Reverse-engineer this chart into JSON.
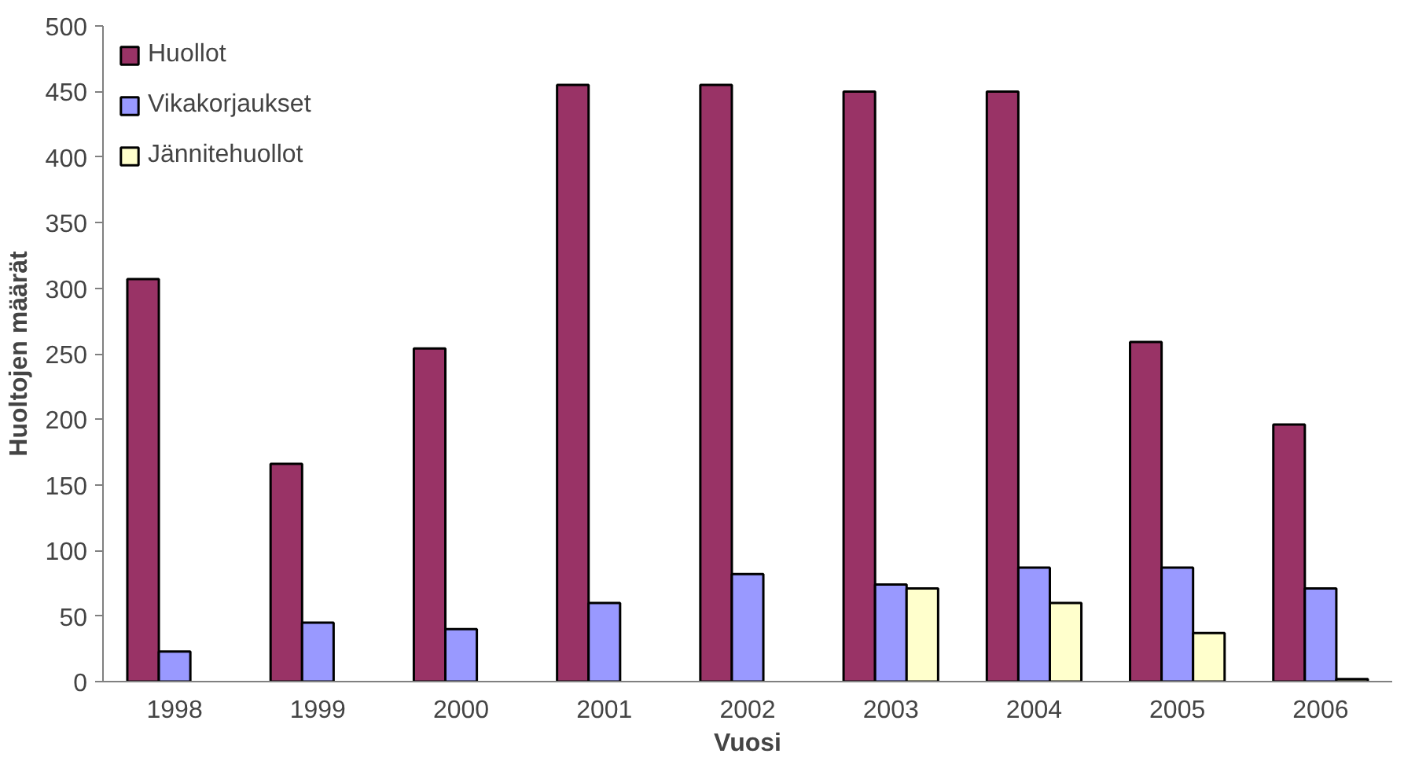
{
  "chart_data": {
    "type": "bar",
    "xlabel": "Vuosi",
    "ylabel": "Huoltojen määrät",
    "categories": [
      "1998",
      "1999",
      "2000",
      "2001",
      "2002",
      "2003",
      "2004",
      "2005",
      "2006"
    ],
    "series": [
      {
        "name": "Huollot",
        "color": "#993366",
        "values": [
          307,
          166,
          254,
          455,
          455,
          450,
          450,
          259,
          196
        ]
      },
      {
        "name": "Vikakorjaukset",
        "color": "#9999ff",
        "values": [
          23,
          45,
          40,
          60,
          82,
          74,
          87,
          87,
          71
        ]
      },
      {
        "name": "Jännitehuollot",
        "color": "#ffffcc",
        "values": [
          null,
          null,
          null,
          null,
          null,
          71,
          60,
          37,
          2
        ]
      }
    ],
    "ylim": [
      0,
      500
    ],
    "yticks": [
      0,
      50,
      100,
      150,
      200,
      250,
      300,
      350,
      400,
      450,
      500
    ],
    "grid": false,
    "legend": "top left"
  }
}
